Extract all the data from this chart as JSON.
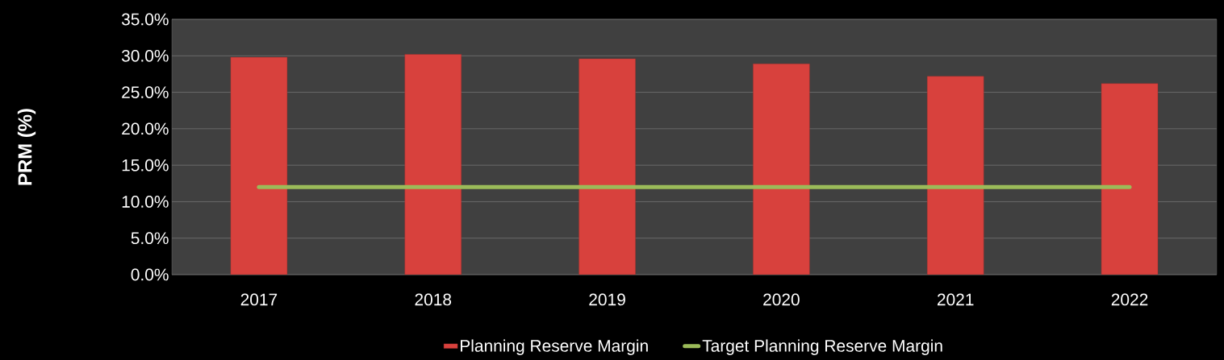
{
  "chart_data": {
    "type": "bar",
    "ylabel": "PRM (%)",
    "categories": [
      "2017",
      "2018",
      "2019",
      "2020",
      "2021",
      "2022"
    ],
    "series": [
      {
        "name": "Planning Reserve Margin",
        "color": "#d8413d",
        "values": [
          29.8,
          30.2,
          29.6,
          28.9,
          27.2,
          26.2
        ]
      },
      {
        "name": "Target Planning Reserve Margin",
        "type": "line",
        "color": "#9bbb59",
        "values": [
          12,
          12,
          12,
          12,
          12,
          12
        ]
      }
    ],
    "ylim": [
      0,
      35
    ],
    "yticks": [
      {
        "value": 0,
        "label": "0.0%"
      },
      {
        "value": 5,
        "label": "5.0%"
      },
      {
        "value": 10,
        "label": "10.0%"
      },
      {
        "value": 15,
        "label": "15.0%"
      },
      {
        "value": 20,
        "label": "20.0%"
      },
      {
        "value": 25,
        "label": "25.0%"
      },
      {
        "value": 30,
        "label": "30.0%"
      },
      {
        "value": 35,
        "label": "35.0%"
      }
    ],
    "grid": "y",
    "legend": "bottom"
  }
}
